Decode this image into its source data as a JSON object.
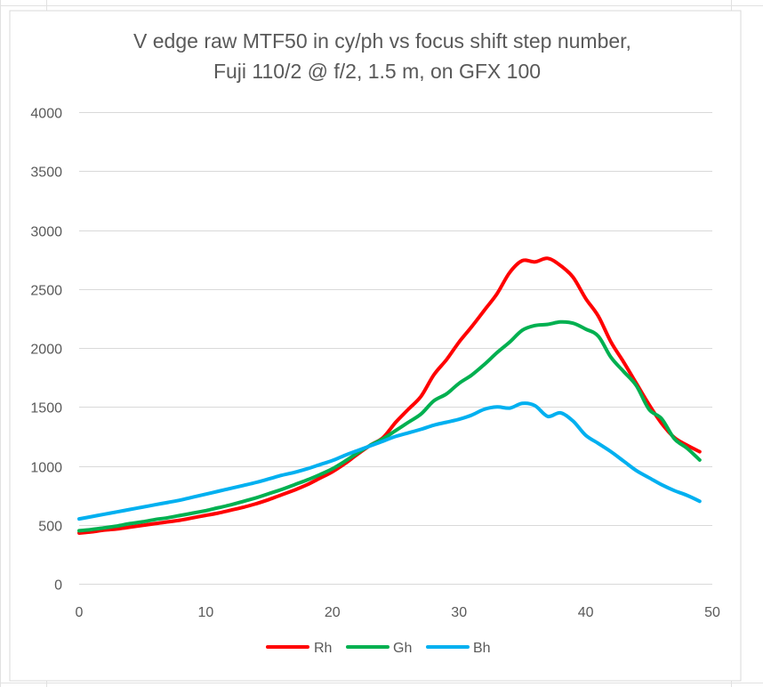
{
  "chart_data": {
    "type": "line",
    "title": [
      "V edge raw MTF50 in cy/ph vs focus shift step number,",
      "Fuji 110/2 @ f/2, 1.5 m, on GFX 100"
    ],
    "xlabel": "",
    "ylabel": "",
    "xlim": [
      0,
      50
    ],
    "ylim": [
      0,
      4000
    ],
    "x_ticks": [
      "0",
      "10",
      "20",
      "30",
      "40",
      "50"
    ],
    "y_ticks": [
      "0",
      "500",
      "1000",
      "1500",
      "2000",
      "2500",
      "3000",
      "3500",
      "4000"
    ],
    "grid": true,
    "legend_position": "bottom",
    "x": [
      0,
      1,
      2,
      3,
      4,
      5,
      6,
      7,
      8,
      9,
      10,
      11,
      12,
      13,
      14,
      15,
      16,
      17,
      18,
      19,
      20,
      21,
      22,
      23,
      24,
      25,
      26,
      27,
      28,
      29,
      30,
      31,
      32,
      33,
      34,
      35,
      36,
      37,
      38,
      39,
      40,
      41,
      42,
      43,
      44,
      45,
      46,
      47,
      48,
      49
    ],
    "series": [
      {
        "name": "Rh",
        "color": "#ff0000",
        "values": [
          430,
          440,
          455,
          465,
          480,
          495,
          510,
          525,
          540,
          560,
          580,
          600,
          625,
          650,
          680,
          715,
          755,
          795,
          840,
          895,
          950,
          1020,
          1100,
          1175,
          1240,
          1370,
          1480,
          1590,
          1770,
          1900,
          2050,
          2180,
          2320,
          2460,
          2640,
          2740,
          2730,
          2760,
          2700,
          2600,
          2420,
          2270,
          2050,
          1880,
          1700,
          1520,
          1360,
          1240,
          1175,
          1120
        ]
      },
      {
        "name": "Gh",
        "color": "#00b050",
        "values": [
          450,
          460,
          475,
          490,
          510,
          525,
          545,
          560,
          580,
          600,
          620,
          645,
          670,
          700,
          730,
          765,
          800,
          840,
          880,
          925,
          975,
          1040,
          1110,
          1175,
          1230,
          1300,
          1370,
          1440,
          1550,
          1610,
          1700,
          1770,
          1860,
          1960,
          2050,
          2150,
          2190,
          2200,
          2220,
          2210,
          2160,
          2100,
          1920,
          1800,
          1680,
          1480,
          1400,
          1230,
          1150,
          1050
        ]
      },
      {
        "name": "Bh",
        "color": "#00b0f0",
        "values": [
          550,
          570,
          590,
          610,
          630,
          650,
          670,
          690,
          710,
          735,
          760,
          785,
          810,
          835,
          860,
          890,
          920,
          945,
          975,
          1010,
          1045,
          1090,
          1130,
          1170,
          1210,
          1250,
          1280,
          1310,
          1345,
          1370,
          1395,
          1430,
          1480,
          1500,
          1490,
          1530,
          1510,
          1420,
          1450,
          1380,
          1260,
          1190,
          1120,
          1040,
          960,
          900,
          840,
          790,
          750,
          700
        ]
      }
    ]
  }
}
